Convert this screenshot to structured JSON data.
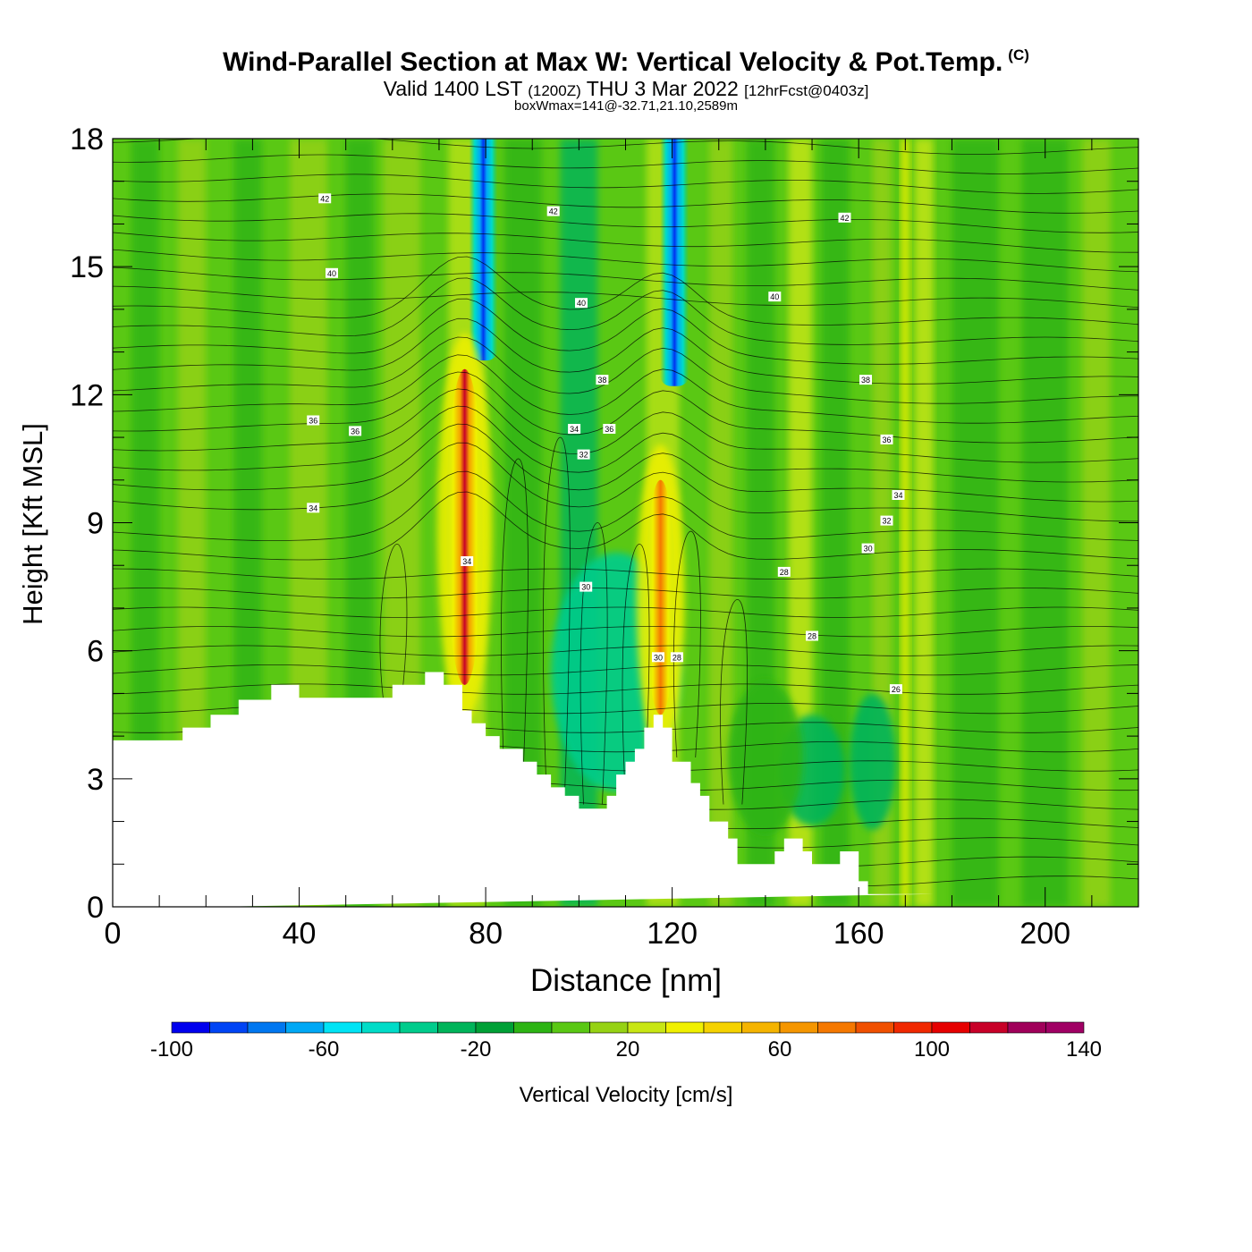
{
  "title": {
    "main": "Wind-Parallel Section at Max W: Vertical Velocity & Pot.Temp.",
    "copyright": "(C)",
    "valid_prefix": "Valid 1400 LST",
    "valid_utc": "(1200Z)",
    "valid_date": "THU 3 Mar 2022",
    "forecast": "[12hrFcst@0403z]",
    "box": "boxWmax=141@-32.71,21.10,2589m"
  },
  "chart_data": {
    "type": "heatmap",
    "xlabel": "Distance [nm]",
    "ylabel": "Height [Kft MSL]",
    "xlim": [
      0,
      220
    ],
    "ylim": [
      0,
      18
    ],
    "x_ticks": [
      0,
      40,
      80,
      120,
      160,
      200
    ],
    "y_ticks": [
      0,
      3,
      6,
      9,
      12,
      15,
      18
    ],
    "colorbar": {
      "label": "Vertical Velocity [cm/s]",
      "min": -100,
      "max": 140,
      "step": 10,
      "tick_labels": [
        "-100",
        "-60",
        "-20",
        "20",
        "60",
        "100",
        "140"
      ],
      "colors": [
        "#0000ee",
        "#0044f5",
        "#0077f0",
        "#00a8f5",
        "#00e4f5",
        "#00dcc8",
        "#00cc8c",
        "#00b45a",
        "#00a036",
        "#2db414",
        "#5ac814",
        "#96d214",
        "#c8e614",
        "#f0f000",
        "#f5d200",
        "#f5b400",
        "#f59600",
        "#f57800",
        "#f05000",
        "#f02800",
        "#e60000",
        "#c80028",
        "#a0005a",
        "#a00064"
      ]
    },
    "terrain": {
      "x": [
        0,
        15,
        15,
        21,
        21,
        27,
        27,
        34,
        34,
        40,
        40,
        60,
        60,
        67,
        67,
        71,
        71,
        75,
        75,
        77,
        77,
        80,
        80,
        83,
        83,
        88,
        88,
        91,
        91,
        94,
        94,
        97,
        97,
        100,
        100,
        106,
        106,
        108,
        108,
        110,
        110,
        112,
        112,
        114,
        114,
        116,
        116,
        118,
        118,
        120,
        120,
        124,
        124,
        126,
        126,
        128,
        128,
        132,
        132,
        134,
        134,
        142,
        142,
        144,
        144,
        148,
        148,
        150,
        150,
        156,
        156,
        160,
        160,
        162,
        162,
        176,
        176,
        178,
        178,
        220
      ],
      "y": [
        3.9,
        3.9,
        4.2,
        4.2,
        4.5,
        4.5,
        4.85,
        4.85,
        5.2,
        5.2,
        4.9,
        4.9,
        5.2,
        5.2,
        5.5,
        5.5,
        5.2,
        5.2,
        4.6,
        4.6,
        4.3,
        4.3,
        4.0,
        4.0,
        3.7,
        3.7,
        3.4,
        3.4,
        3.1,
        3.1,
        2.8,
        2.8,
        2.6,
        2.6,
        2.3,
        2.3,
        2.6,
        2.6,
        3.1,
        3.1,
        3.4,
        3.4,
        3.7,
        3.7,
        4.2,
        4.2,
        4.5,
        4.5,
        4.2,
        4.2,
        3.4,
        3.4,
        2.9,
        2.9,
        2.6,
        2.6,
        2.0,
        2.0,
        1.6,
        1.6,
        1.0,
        1.0,
        1.3,
        1.3,
        1.6,
        1.6,
        1.3,
        1.3,
        1.0,
        1.0,
        1.3,
        1.3,
        0.6,
        0.6,
        0.3,
        0.3
      ]
    },
    "updraft_cores": [
      {
        "x": 75.5,
        "y_top": 12.6,
        "y_bottom": 5.2,
        "w_max": 141
      },
      {
        "x": 117.5,
        "y_top": 10.0,
        "y_bottom": 4.5,
        "w_max": 84
      }
    ],
    "downdraft_cores": [
      {
        "x": 79.5,
        "y_top": 18,
        "y_bottom": 12.8,
        "w_min": -100
      },
      {
        "x": 120.5,
        "y_top": 18,
        "y_bottom": 12.2,
        "w_min": -90
      }
    ],
    "theta_contour_labels": [
      {
        "text": "42",
        "x": 45.5,
        "y": 16.6
      },
      {
        "text": "42",
        "x": 94.5,
        "y": 16.3
      },
      {
        "text": "42",
        "x": 157,
        "y": 16.15
      },
      {
        "text": "40",
        "x": 47,
        "y": 14.85
      },
      {
        "text": "40",
        "x": 100.5,
        "y": 14.15
      },
      {
        "text": "40",
        "x": 142,
        "y": 14.3
      },
      {
        "text": "38",
        "x": 105,
        "y": 12.35
      },
      {
        "text": "38",
        "x": 161.5,
        "y": 12.35
      },
      {
        "text": "36",
        "x": 43,
        "y": 11.4
      },
      {
        "text": "36",
        "x": 52,
        "y": 11.15
      },
      {
        "text": "36",
        "x": 106.5,
        "y": 11.2
      },
      {
        "text": "36",
        "x": 166,
        "y": 10.95
      },
      {
        "text": "34",
        "x": 43,
        "y": 9.35
      },
      {
        "text": "34",
        "x": 99,
        "y": 11.2
      },
      {
        "text": "34",
        "x": 76,
        "y": 8.1
      },
      {
        "text": "34",
        "x": 168.5,
        "y": 9.65
      },
      {
        "text": "32",
        "x": 101,
        "y": 10.6
      },
      {
        "text": "32",
        "x": 166,
        "y": 9.05
      },
      {
        "text": "30",
        "x": 101.5,
        "y": 7.5
      },
      {
        "text": "30",
        "x": 117,
        "y": 5.85
      },
      {
        "text": "30",
        "x": 162,
        "y": 8.4
      },
      {
        "text": "28",
        "x": 121,
        "y": 5.85
      },
      {
        "text": "28",
        "x": 144,
        "y": 7.85
      },
      {
        "text": "28",
        "x": 150,
        "y": 6.35
      },
      {
        "text": "26",
        "x": 168,
        "y": 5.1
      }
    ]
  }
}
